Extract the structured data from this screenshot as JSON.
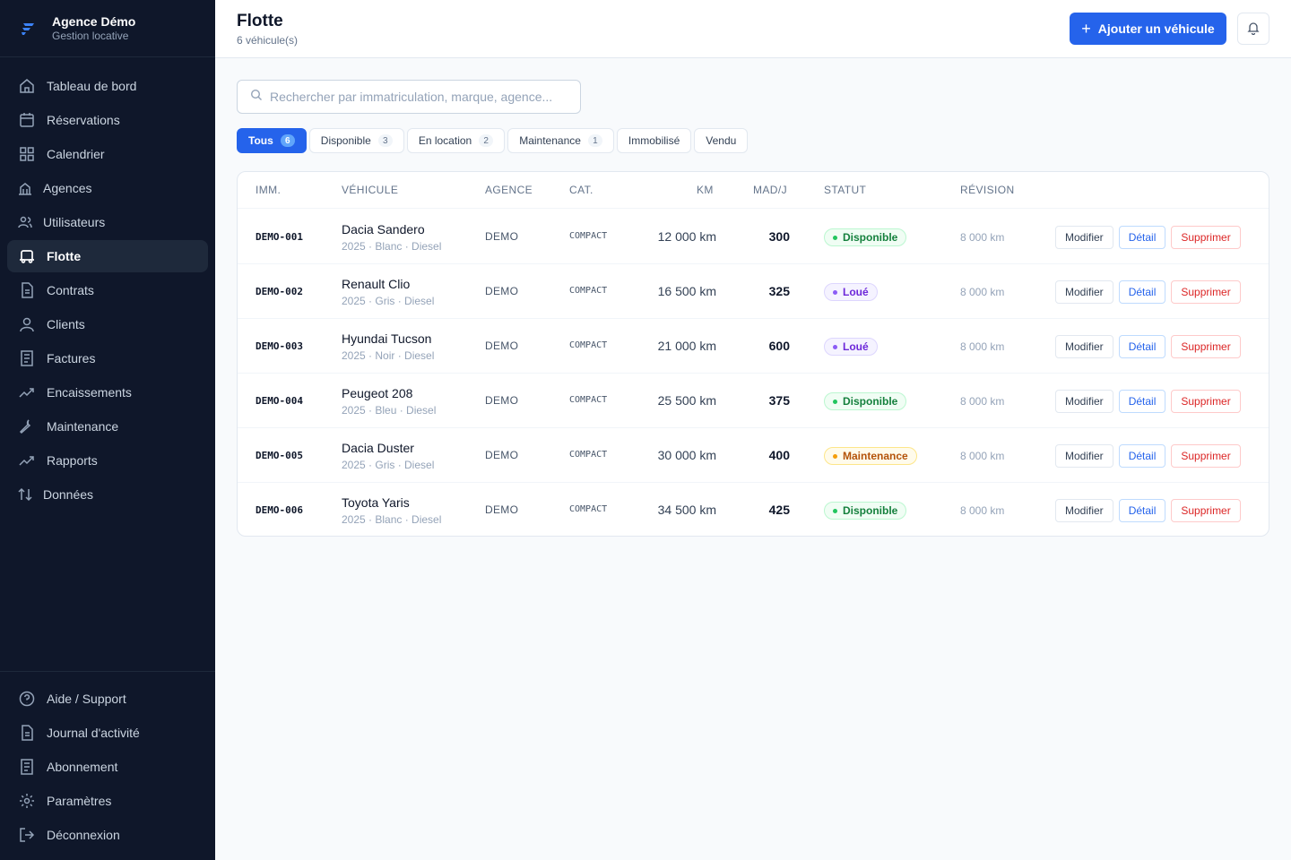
{
  "brand": {
    "name": "Agence Démo",
    "subtitle": "Gestion locative"
  },
  "nav": [
    {
      "label": "Tableau de bord",
      "icon": "home-icon"
    },
    {
      "label": "Réservations",
      "icon": "calendar-icon"
    },
    {
      "label": "Calendrier",
      "icon": "grid-icon"
    },
    {
      "label": "Agences",
      "icon": "building-icon"
    },
    {
      "label": "Utilisateurs",
      "icon": "users-icon"
    },
    {
      "label": "Flotte",
      "icon": "car-icon",
      "active": true
    },
    {
      "label": "Contrats",
      "icon": "document-icon"
    },
    {
      "label": "Clients",
      "icon": "user-icon"
    },
    {
      "label": "Factures",
      "icon": "receipt-icon"
    },
    {
      "label": "Encaissements",
      "icon": "trend-icon"
    },
    {
      "label": "Maintenance",
      "icon": "wrench-icon"
    },
    {
      "label": "Rapports",
      "icon": "trend-icon"
    },
    {
      "label": "Données",
      "icon": "sort-icon"
    }
  ],
  "nav_bottom": [
    {
      "label": "Aide / Support",
      "icon": "help-icon"
    },
    {
      "label": "Journal d'activité",
      "icon": "document-icon"
    },
    {
      "label": "Abonnement",
      "icon": "receipt-icon"
    },
    {
      "label": "Paramètres",
      "icon": "gear-icon"
    },
    {
      "label": "Déconnexion",
      "icon": "logout-icon"
    }
  ],
  "header": {
    "title": "Flotte",
    "subtitle": "6 véhicule(s)",
    "add_button": "Ajouter un véhicule"
  },
  "search": {
    "placeholder": "Rechercher par immatriculation, marque, agence..."
  },
  "filters": [
    {
      "label": "Tous",
      "count": "6",
      "active": true
    },
    {
      "label": "Disponible",
      "count": "3"
    },
    {
      "label": "En location",
      "count": "2"
    },
    {
      "label": "Maintenance",
      "count": "1"
    },
    {
      "label": "Immobilisé",
      "count": ""
    },
    {
      "label": "Vendu",
      "count": ""
    }
  ],
  "table": {
    "columns": [
      "IMM.",
      "VÉHICULE",
      "AGENCE",
      "CAT.",
      "KM",
      "MAD/J",
      "STATUT",
      "RÉVISION"
    ],
    "actions": {
      "edit": "Modifier",
      "detail": "Détail",
      "delete": "Supprimer"
    },
    "rows": [
      {
        "imm": "DEMO-001",
        "name": "Dacia Sandero",
        "sub": "2025 · Blanc · Diesel",
        "agence": "DEMO",
        "cat": "COMPACT",
        "km": "12 000 km",
        "mad": "300",
        "status": "Disponible",
        "status_kind": "dispo",
        "revision": "8 000 km"
      },
      {
        "imm": "DEMO-002",
        "name": "Renault Clio",
        "sub": "2025 · Gris · Diesel",
        "agence": "DEMO",
        "cat": "COMPACT",
        "km": "16 500 km",
        "mad": "325",
        "status": "Loué",
        "status_kind": "loue",
        "revision": "8 000 km"
      },
      {
        "imm": "DEMO-003",
        "name": "Hyundai Tucson",
        "sub": "2025 · Noir · Diesel",
        "agence": "DEMO",
        "cat": "COMPACT",
        "km": "21 000 km",
        "mad": "600",
        "status": "Loué",
        "status_kind": "loue",
        "revision": "8 000 km"
      },
      {
        "imm": "DEMO-004",
        "name": "Peugeot 208",
        "sub": "2025 · Bleu · Diesel",
        "agence": "DEMO",
        "cat": "COMPACT",
        "km": "25 500 km",
        "mad": "375",
        "status": "Disponible",
        "status_kind": "dispo",
        "revision": "8 000 km"
      },
      {
        "imm": "DEMO-005",
        "name": "Dacia Duster",
        "sub": "2025 · Gris · Diesel",
        "agence": "DEMO",
        "cat": "COMPACT",
        "km": "30 000 km",
        "mad": "400",
        "status": "Maintenance",
        "status_kind": "maint",
        "revision": "8 000 km"
      },
      {
        "imm": "DEMO-006",
        "name": "Toyota Yaris",
        "sub": "2025 · Blanc · Diesel",
        "agence": "DEMO",
        "cat": "COMPACT",
        "km": "34 500 km",
        "mad": "425",
        "status": "Disponible",
        "status_kind": "dispo",
        "revision": "8 000 km"
      }
    ]
  },
  "colors": {
    "primary": "#2563eb",
    "sidebar_bg": "#0f172a",
    "available": "#15803d",
    "rented": "#6d28d9",
    "maintenance": "#b45309",
    "danger": "#dc2626"
  }
}
